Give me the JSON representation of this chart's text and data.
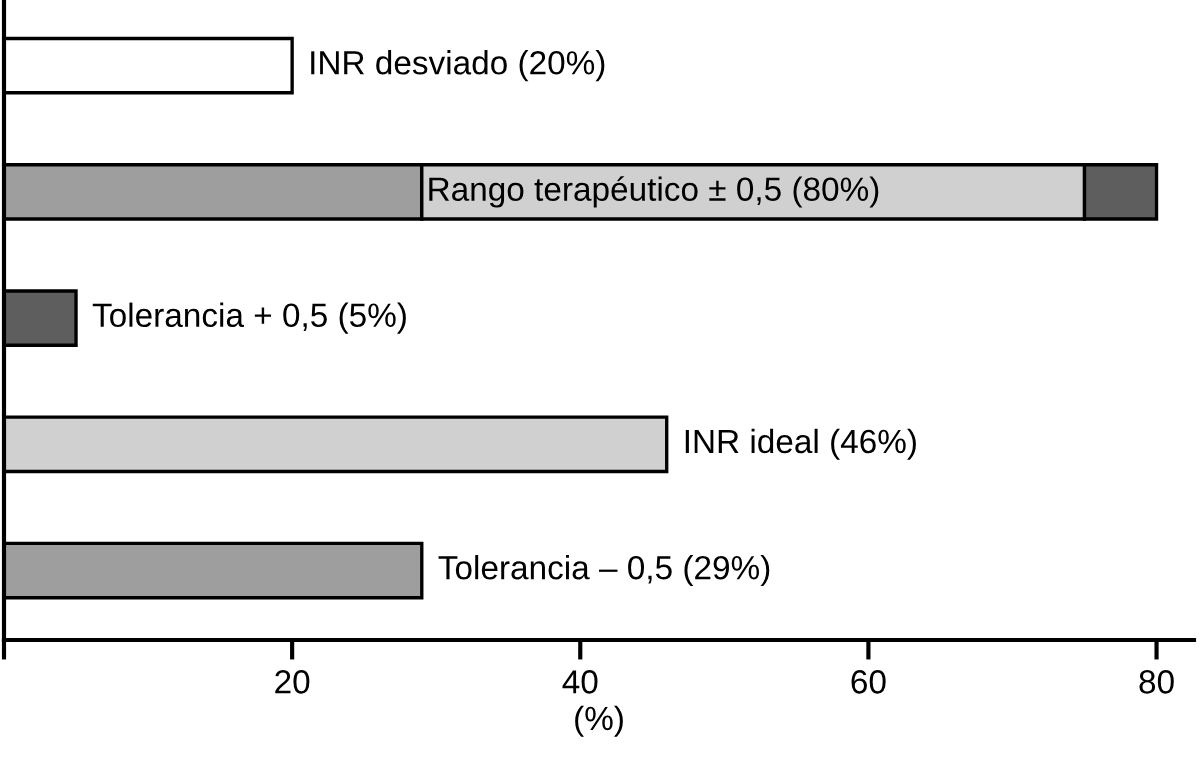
{
  "chart_data": {
    "type": "bar",
    "orientation": "horizontal",
    "stacked": true,
    "xlabel": "(%)",
    "categories": [
      "INR desviado (20%)",
      "Rango terapéutico ± 0,5 (80%)",
      "Tolerancia + 0,5 (5%)",
      "INR ideal (46%)",
      "Tolerancia – 0,5 (29%)"
    ],
    "series": [
      {
        "color": "#ffffff",
        "values": [
          20,
          0,
          0,
          0,
          0
        ]
      },
      {
        "color": "#9e9e9e",
        "values": [
          0,
          29,
          0,
          0,
          29
        ]
      },
      {
        "color": "#d0d0d0",
        "values": [
          0,
          46,
          0,
          46,
          0
        ]
      },
      {
        "color": "#5e5e5e",
        "values": [
          0,
          5,
          5,
          0,
          0
        ]
      }
    ],
    "xlim": [
      0,
      82.6
    ],
    "xticks": [
      {
        "value": 0,
        "label": null
      },
      20,
      40,
      60,
      80
    ],
    "grid": false,
    "legend": false
  }
}
